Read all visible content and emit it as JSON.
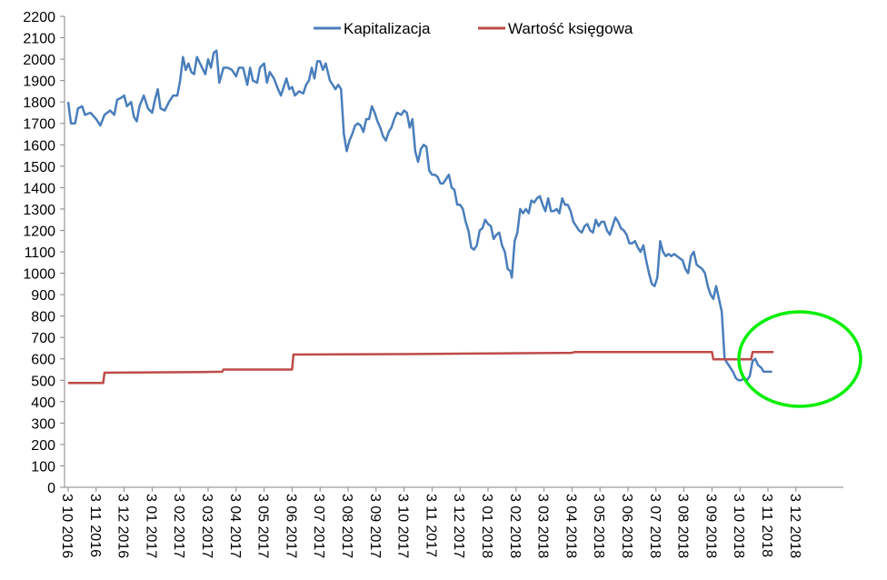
{
  "chart_data": {
    "type": "line",
    "title": "",
    "xlabel": "",
    "ylabel": "",
    "ylim": [
      0,
      2200
    ],
    "ytick_step": 100,
    "grid": false,
    "legend_position": "top",
    "x_ticks": [
      "3 10 2016",
      "3 11 2016",
      "3 12 2016",
      "3 01 2017",
      "3 02 2017",
      "3 03 2017",
      "3 04 2017",
      "3 05 2017",
      "3 06 2017",
      "3 07 2017",
      "3 08 2017",
      "3 09 2017",
      "3 10 2017",
      "3 11 2017",
      "3 12 2017",
      "3 01 2018",
      "3 02 2018",
      "3 03 2018",
      "3 04 2018",
      "3 05 2018",
      "3 06 2018",
      "3 07 2018",
      "3 08 2018",
      "3 09 2018",
      "3 10 2018",
      "3 11 2018",
      "3 12 2018"
    ],
    "x_end": 27.85,
    "series": [
      {
        "name": "Kapitalizacja",
        "color": "#4a7ebb",
        "points": [
          [
            0.0,
            1800
          ],
          [
            0.1,
            1700
          ],
          [
            0.25,
            1700
          ],
          [
            0.35,
            1770
          ],
          [
            0.5,
            1780
          ],
          [
            0.6,
            1740
          ],
          [
            0.8,
            1750
          ],
          [
            1.0,
            1720
          ],
          [
            1.15,
            1690
          ],
          [
            1.3,
            1740
          ],
          [
            1.5,
            1760
          ],
          [
            1.65,
            1740
          ],
          [
            1.75,
            1810
          ],
          [
            1.9,
            1820
          ],
          [
            2.0,
            1830
          ],
          [
            2.1,
            1780
          ],
          [
            2.25,
            1800
          ],
          [
            2.35,
            1730
          ],
          [
            2.45,
            1710
          ],
          [
            2.55,
            1780
          ],
          [
            2.7,
            1830
          ],
          [
            2.85,
            1770
          ],
          [
            3.0,
            1750
          ],
          [
            3.1,
            1810
          ],
          [
            3.2,
            1860
          ],
          [
            3.3,
            1770
          ],
          [
            3.45,
            1760
          ],
          [
            3.6,
            1800
          ],
          [
            3.75,
            1830
          ],
          [
            3.9,
            1830
          ],
          [
            4.0,
            1900
          ],
          [
            4.1,
            2010
          ],
          [
            4.2,
            1950
          ],
          [
            4.3,
            1980
          ],
          [
            4.4,
            1940
          ],
          [
            4.5,
            1930
          ],
          [
            4.6,
            2010
          ],
          [
            4.75,
            1970
          ],
          [
            4.9,
            1930
          ],
          [
            5.0,
            2000
          ],
          [
            5.1,
            1960
          ],
          [
            5.2,
            2030
          ],
          [
            5.3,
            2040
          ],
          [
            5.4,
            1890
          ],
          [
            5.55,
            1960
          ],
          [
            5.7,
            1960
          ],
          [
            5.85,
            1950
          ],
          [
            6.0,
            1920
          ],
          [
            6.1,
            1960
          ],
          [
            6.25,
            1960
          ],
          [
            6.4,
            1880
          ],
          [
            6.5,
            1960
          ],
          [
            6.6,
            1900
          ],
          [
            6.75,
            1890
          ],
          [
            6.85,
            1960
          ],
          [
            7.0,
            1980
          ],
          [
            7.1,
            1890
          ],
          [
            7.2,
            1940
          ],
          [
            7.35,
            1910
          ],
          [
            7.5,
            1860
          ],
          [
            7.6,
            1830
          ],
          [
            7.7,
            1870
          ],
          [
            7.8,
            1910
          ],
          [
            7.9,
            1860
          ],
          [
            8.0,
            1870
          ],
          [
            8.1,
            1830
          ],
          [
            8.25,
            1850
          ],
          [
            8.4,
            1840
          ],
          [
            8.5,
            1880
          ],
          [
            8.6,
            1900
          ],
          [
            8.7,
            1960
          ],
          [
            8.8,
            1910
          ],
          [
            8.9,
            1990
          ],
          [
            9.0,
            1990
          ],
          [
            9.1,
            1950
          ],
          [
            9.2,
            1980
          ],
          [
            9.35,
            1900
          ],
          [
            9.45,
            1880
          ],
          [
            9.55,
            1860
          ],
          [
            9.65,
            1880
          ],
          [
            9.75,
            1860
          ],
          [
            9.85,
            1650
          ],
          [
            9.95,
            1570
          ],
          [
            10.05,
            1620
          ],
          [
            10.15,
            1650
          ],
          [
            10.25,
            1690
          ],
          [
            10.35,
            1700
          ],
          [
            10.45,
            1690
          ],
          [
            10.55,
            1660
          ],
          [
            10.65,
            1720
          ],
          [
            10.75,
            1720
          ],
          [
            10.85,
            1780
          ],
          [
            10.95,
            1750
          ],
          [
            11.05,
            1710
          ],
          [
            11.15,
            1680
          ],
          [
            11.25,
            1640
          ],
          [
            11.35,
            1620
          ],
          [
            11.45,
            1660
          ],
          [
            11.55,
            1680
          ],
          [
            11.65,
            1720
          ],
          [
            11.75,
            1750
          ],
          [
            11.9,
            1740
          ],
          [
            12.0,
            1760
          ],
          [
            12.1,
            1750
          ],
          [
            12.2,
            1680
          ],
          [
            12.3,
            1720
          ],
          [
            12.4,
            1570
          ],
          [
            12.5,
            1520
          ],
          [
            12.6,
            1580
          ],
          [
            12.7,
            1600
          ],
          [
            12.8,
            1590
          ],
          [
            12.9,
            1480
          ],
          [
            13.0,
            1460
          ],
          [
            13.1,
            1460
          ],
          [
            13.2,
            1450
          ],
          [
            13.3,
            1420
          ],
          [
            13.4,
            1420
          ],
          [
            13.5,
            1440
          ],
          [
            13.6,
            1460
          ],
          [
            13.7,
            1400
          ],
          [
            13.8,
            1390
          ],
          [
            13.9,
            1320
          ],
          [
            14.0,
            1320
          ],
          [
            14.1,
            1300
          ],
          [
            14.2,
            1240
          ],
          [
            14.3,
            1200
          ],
          [
            14.4,
            1120
          ],
          [
            14.5,
            1110
          ],
          [
            14.6,
            1130
          ],
          [
            14.7,
            1200
          ],
          [
            14.8,
            1210
          ],
          [
            14.9,
            1250
          ],
          [
            15.0,
            1230
          ],
          [
            15.1,
            1220
          ],
          [
            15.2,
            1160
          ],
          [
            15.3,
            1180
          ],
          [
            15.4,
            1190
          ],
          [
            15.5,
            1130
          ],
          [
            15.6,
            1100
          ],
          [
            15.7,
            1020
          ],
          [
            15.8,
            1010
          ],
          [
            15.85,
            980
          ],
          [
            15.95,
            1150
          ],
          [
            16.05,
            1190
          ],
          [
            16.15,
            1300
          ],
          [
            16.25,
            1280
          ],
          [
            16.35,
            1300
          ],
          [
            16.45,
            1280
          ],
          [
            16.55,
            1340
          ],
          [
            16.65,
            1330
          ],
          [
            16.75,
            1350
          ],
          [
            16.85,
            1360
          ],
          [
            16.95,
            1320
          ],
          [
            17.05,
            1290
          ],
          [
            17.15,
            1350
          ],
          [
            17.25,
            1290
          ],
          [
            17.35,
            1290
          ],
          [
            17.45,
            1300
          ],
          [
            17.55,
            1280
          ],
          [
            17.65,
            1350
          ],
          [
            17.75,
            1320
          ],
          [
            17.85,
            1320
          ],
          [
            17.95,
            1290
          ],
          [
            18.05,
            1240
          ],
          [
            18.15,
            1220
          ],
          [
            18.25,
            1200
          ],
          [
            18.35,
            1190
          ],
          [
            18.45,
            1220
          ],
          [
            18.55,
            1230
          ],
          [
            18.65,
            1200
          ],
          [
            18.75,
            1190
          ],
          [
            18.85,
            1250
          ],
          [
            18.95,
            1220
          ],
          [
            19.05,
            1240
          ],
          [
            19.15,
            1240
          ],
          [
            19.25,
            1200
          ],
          [
            19.35,
            1180
          ],
          [
            19.45,
            1220
          ],
          [
            19.55,
            1260
          ],
          [
            19.65,
            1240
          ],
          [
            19.75,
            1210
          ],
          [
            19.85,
            1200
          ],
          [
            19.95,
            1180
          ],
          [
            20.05,
            1140
          ],
          [
            20.15,
            1140
          ],
          [
            20.25,
            1150
          ],
          [
            20.35,
            1120
          ],
          [
            20.45,
            1100
          ],
          [
            20.55,
            1130
          ],
          [
            20.65,
            1060
          ],
          [
            20.75,
            1000
          ],
          [
            20.85,
            950
          ],
          [
            20.95,
            940
          ],
          [
            21.05,
            980
          ],
          [
            21.15,
            1150
          ],
          [
            21.25,
            1100
          ],
          [
            21.35,
            1080
          ],
          [
            21.45,
            1090
          ],
          [
            21.55,
            1080
          ],
          [
            21.65,
            1090
          ],
          [
            21.75,
            1080
          ],
          [
            21.85,
            1070
          ],
          [
            21.95,
            1060
          ],
          [
            22.05,
            1020
          ],
          [
            22.15,
            1000
          ],
          [
            22.25,
            1080
          ],
          [
            22.35,
            1100
          ],
          [
            22.45,
            1040
          ],
          [
            22.55,
            1030
          ],
          [
            22.65,
            1020
          ],
          [
            22.75,
            1000
          ],
          [
            22.85,
            940
          ],
          [
            22.95,
            900
          ],
          [
            23.05,
            880
          ],
          [
            23.15,
            940
          ],
          [
            23.25,
            880
          ],
          [
            23.35,
            820
          ],
          [
            23.45,
            600
          ],
          [
            23.55,
            580
          ],
          [
            23.65,
            560
          ],
          [
            23.75,
            540
          ],
          [
            23.85,
            510
          ],
          [
            23.95,
            500
          ],
          [
            24.05,
            500
          ],
          [
            24.15,
            510
          ],
          [
            24.25,
            500
          ],
          [
            24.35,
            520
          ],
          [
            24.45,
            590
          ],
          [
            24.55,
            600
          ],
          [
            24.65,
            570
          ],
          [
            24.75,
            560
          ],
          [
            24.85,
            540
          ],
          [
            24.95,
            540
          ],
          [
            25.05,
            540
          ],
          [
            25.15,
            540
          ]
        ]
      },
      {
        "name": "Wartość księgowa",
        "color": "#be4b48",
        "points": [
          [
            0.0,
            487
          ],
          [
            1.25,
            487
          ],
          [
            1.3,
            535
          ],
          [
            4.8,
            538
          ],
          [
            5.5,
            540
          ],
          [
            5.55,
            550
          ],
          [
            8.0,
            550
          ],
          [
            8.05,
            620
          ],
          [
            12.0,
            622
          ],
          [
            18.0,
            628
          ],
          [
            18.1,
            632
          ],
          [
            23.0,
            632
          ],
          [
            23.05,
            598
          ],
          [
            24.4,
            598
          ],
          [
            24.45,
            632
          ],
          [
            25.2,
            632
          ]
        ]
      }
    ],
    "annotations": [
      {
        "type": "ellipse",
        "color": "#00ee00",
        "note": "highlight"
      }
    ]
  }
}
